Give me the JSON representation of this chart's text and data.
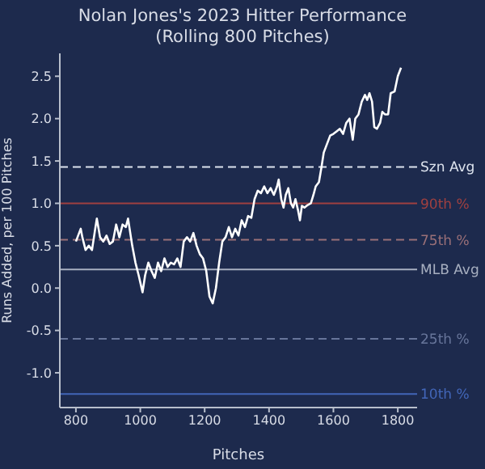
{
  "chart_data": {
    "type": "line",
    "title": "Nolan Jones's 2023 Hitter Performance",
    "subtitle": "(Rolling 800 Pitches)",
    "xlabel": "Pitches",
    "ylabel": "Runs Added, per 100 Pitches",
    "x": [
      800,
      805,
      815,
      820,
      830,
      840,
      850,
      860,
      865,
      875,
      885,
      895,
      905,
      915,
      925,
      935,
      945,
      955,
      962,
      975,
      985,
      995,
      1007,
      1015,
      1025,
      1035,
      1045,
      1055,
      1065,
      1075,
      1085,
      1095,
      1105,
      1115,
      1125,
      1135,
      1145,
      1155,
      1165,
      1175,
      1185,
      1195,
      1205,
      1215,
      1225,
      1235,
      1245,
      1255,
      1265,
      1275,
      1285,
      1295,
      1305,
      1315,
      1325,
      1335,
      1345,
      1355,
      1365,
      1375,
      1385,
      1395,
      1405,
      1415,
      1425,
      1430,
      1438,
      1445,
      1452,
      1460,
      1468,
      1475,
      1482,
      1490,
      1496,
      1502,
      1510,
      1520,
      1530,
      1538,
      1545,
      1555,
      1563,
      1570,
      1580,
      1590,
      1600,
      1610,
      1620,
      1630,
      1640,
      1650,
      1660,
      1668,
      1678,
      1688,
      1698,
      1705,
      1712,
      1720,
      1727,
      1735,
      1745,
      1752,
      1760,
      1770,
      1778,
      1790,
      1800,
      1810
    ],
    "series": [
      {
        "color": "#ffffff",
        "values": [
          0.55,
          0.6,
          0.7,
          0.6,
          0.45,
          0.5,
          0.45,
          0.7,
          0.82,
          0.6,
          0.55,
          0.62,
          0.52,
          0.55,
          0.75,
          0.6,
          0.75,
          0.72,
          0.82,
          0.5,
          0.3,
          0.15,
          -0.05,
          0.15,
          0.3,
          0.2,
          0.12,
          0.3,
          0.2,
          0.35,
          0.25,
          0.3,
          0.28,
          0.35,
          0.25,
          0.55,
          0.6,
          0.55,
          0.65,
          0.5,
          0.4,
          0.35,
          0.2,
          -0.1,
          -0.18,
          0.0,
          0.3,
          0.55,
          0.6,
          0.72,
          0.6,
          0.7,
          0.62,
          0.8,
          0.72,
          0.85,
          0.83,
          1.05,
          1.15,
          1.12,
          1.2,
          1.12,
          1.18,
          1.1,
          1.2,
          1.28,
          1.05,
          0.95,
          1.1,
          1.18,
          1.0,
          0.95,
          1.05,
          0.92,
          0.8,
          0.97,
          0.95,
          0.98,
          1.0,
          1.1,
          1.2,
          1.25,
          1.43,
          1.6,
          1.7,
          1.8,
          1.82,
          1.85,
          1.88,
          1.82,
          1.95,
          2.0,
          1.75,
          2.0,
          2.05,
          2.2,
          2.28,
          2.22,
          2.3,
          2.2,
          1.9,
          1.88,
          1.95,
          2.08,
          2.05,
          2.05,
          2.3,
          2.32,
          2.5,
          2.6
        ]
      }
    ],
    "xlim": [
      750,
      1860
    ],
    "xticks": [
      800,
      1000,
      1200,
      1400,
      1600,
      1800
    ],
    "ylim": [
      -1.41,
      2.77
    ],
    "yticks": [
      {
        "value": -1,
        "label": "-1.0"
      },
      -0.5,
      {
        "value": 0,
        "label": "0.0"
      },
      0.5,
      {
        "value": 1,
        "label": "1.0"
      },
      1.5,
      {
        "value": 2,
        "label": "2.0"
      },
      2.5
    ],
    "ref_lines": [
      {
        "axis": "y",
        "value": 1.43,
        "label": "Szn Avg",
        "color": "#dde3ee",
        "line_style": "dashed"
      },
      {
        "axis": "y",
        "value": 1.0,
        "label": "90th %",
        "color": "#a04040",
        "line_style": "solid"
      },
      {
        "axis": "y",
        "value": 0.57,
        "label": "75th %",
        "color": "#9a7078",
        "line_style": "dashed"
      },
      {
        "axis": "y",
        "value": 0.22,
        "label": "MLB Avg",
        "color": "#a7afc0",
        "line_style": "solid"
      },
      {
        "axis": "y",
        "value": -0.6,
        "label": "25th %",
        "color": "#67759a",
        "line_style": "dashed"
      },
      {
        "axis": "y",
        "value": -1.25,
        "label": "10th %",
        "color": "#4266b8",
        "line_style": "solid"
      }
    ],
    "grid": false,
    "legend": false,
    "marker": "none",
    "line_style": "solid"
  }
}
